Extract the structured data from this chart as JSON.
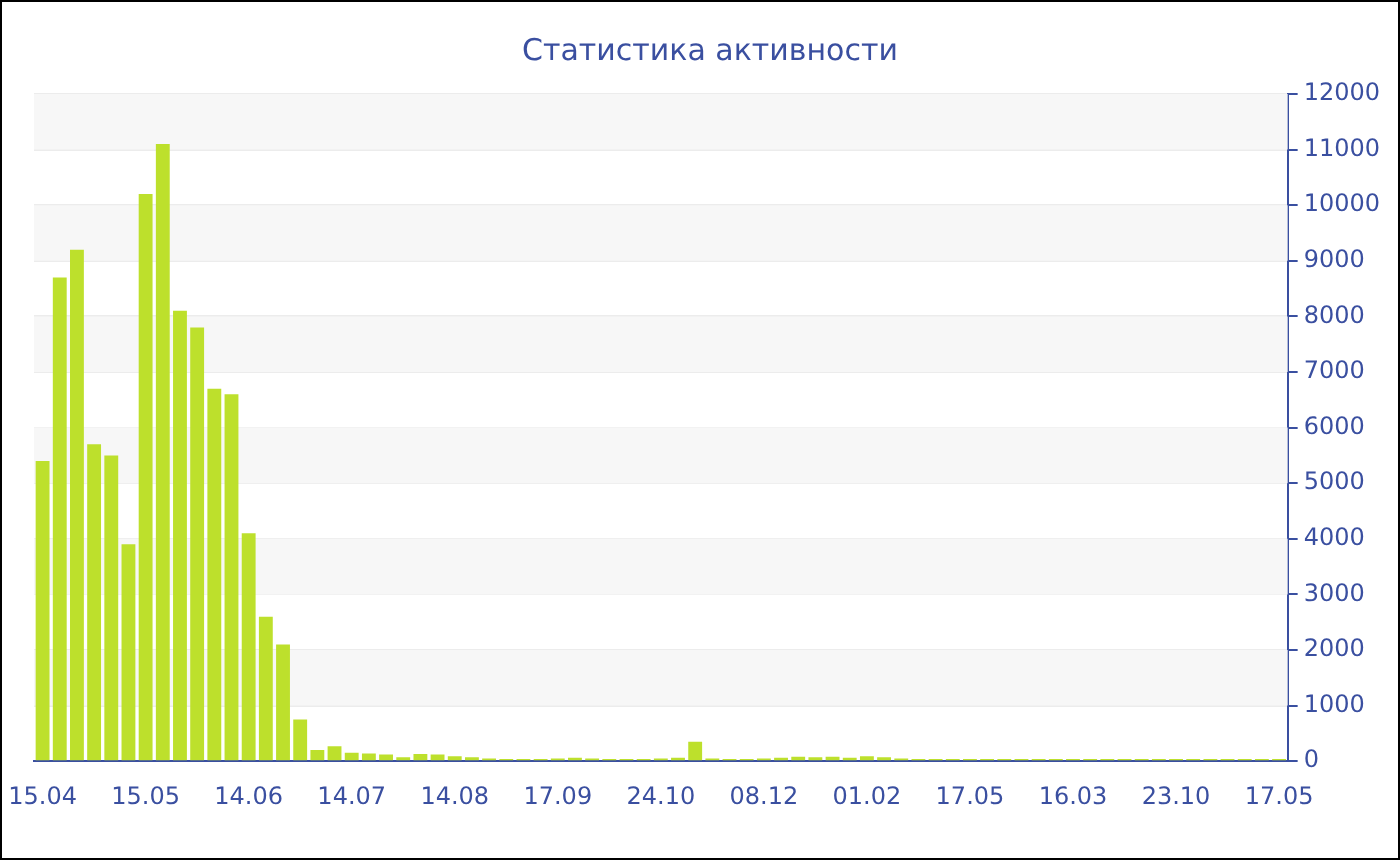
{
  "chart_data": {
    "type": "bar",
    "title": "Статистика активности",
    "categories": [
      "15.04",
      null,
      null,
      null,
      null,
      null,
      "15.05",
      null,
      null,
      null,
      null,
      null,
      "14.06",
      null,
      null,
      null,
      null,
      null,
      "14.07",
      null,
      null,
      null,
      null,
      null,
      "14.08",
      null,
      null,
      null,
      null,
      null,
      "17.09",
      null,
      null,
      null,
      null,
      null,
      "24.10",
      null,
      null,
      null,
      null,
      null,
      "08.12",
      null,
      null,
      null,
      null,
      null,
      "01.02",
      null,
      null,
      null,
      null,
      null,
      "17.05",
      null,
      null,
      null,
      null,
      null,
      "16.03",
      null,
      null,
      null,
      null,
      null,
      "23.10",
      null,
      null,
      null,
      null,
      null,
      "17.05"
    ],
    "values": [
      5400,
      8700,
      9200,
      5700,
      5500,
      3900,
      10200,
      11100,
      8100,
      7800,
      6700,
      6600,
      4100,
      2600,
      2100,
      750,
      200,
      270,
      150,
      140,
      120,
      70,
      130,
      120,
      90,
      70,
      50,
      40,
      40,
      40,
      50,
      60,
      50,
      40,
      40,
      40,
      50,
      60,
      350,
      50,
      40,
      40,
      50,
      60,
      80,
      70,
      80,
      60,
      90,
      70,
      50,
      40,
      40,
      40,
      40,
      40,
      40,
      40,
      40,
      40,
      40,
      40,
      40,
      40,
      40,
      40,
      40,
      40,
      40,
      40,
      40,
      40,
      40
    ],
    "color": "#bde02c",
    "ylim": [
      0,
      12000
    ],
    "yticks": [
      0,
      1000,
      2000,
      3000,
      4000,
      5000,
      6000,
      7000,
      8000,
      9000,
      10000,
      11000,
      12000
    ],
    "grid": "y"
  }
}
